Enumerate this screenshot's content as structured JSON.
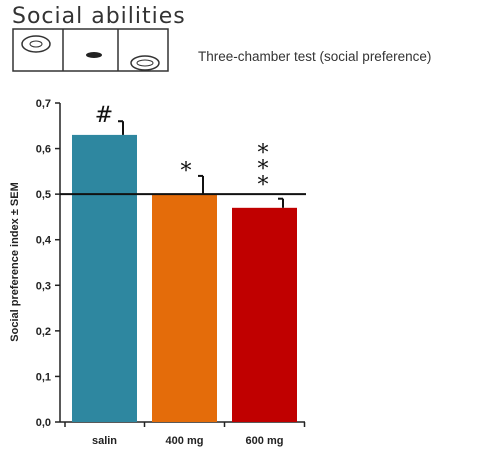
{
  "header": {
    "title": "Social abilities",
    "subtitle": "Three-chamber test (social preference)"
  },
  "colors": {
    "salin": "#2e87a0",
    "400mg": "#e46c0a",
    "600mg": "#c00000"
  },
  "chart_data": {
    "type": "bar",
    "title": "",
    "xlabel": "",
    "ylabel": "Social preference index ± SEM",
    "ylim": [
      0,
      0.7
    ],
    "yticks": [
      "0,0",
      "0,1",
      "0,2",
      "0,3",
      "0,4",
      "0,5",
      "0,6",
      "0,7"
    ],
    "categories": [
      "salin",
      "400 mg",
      "600 mg"
    ],
    "values": [
      0.63,
      0.5,
      0.47
    ],
    "errors": [
      0.03,
      0.04,
      0.02
    ],
    "reference_line": 0.5,
    "significance": [
      "#",
      "*",
      "*\n*\n*"
    ],
    "grid": false,
    "legend": "none"
  }
}
